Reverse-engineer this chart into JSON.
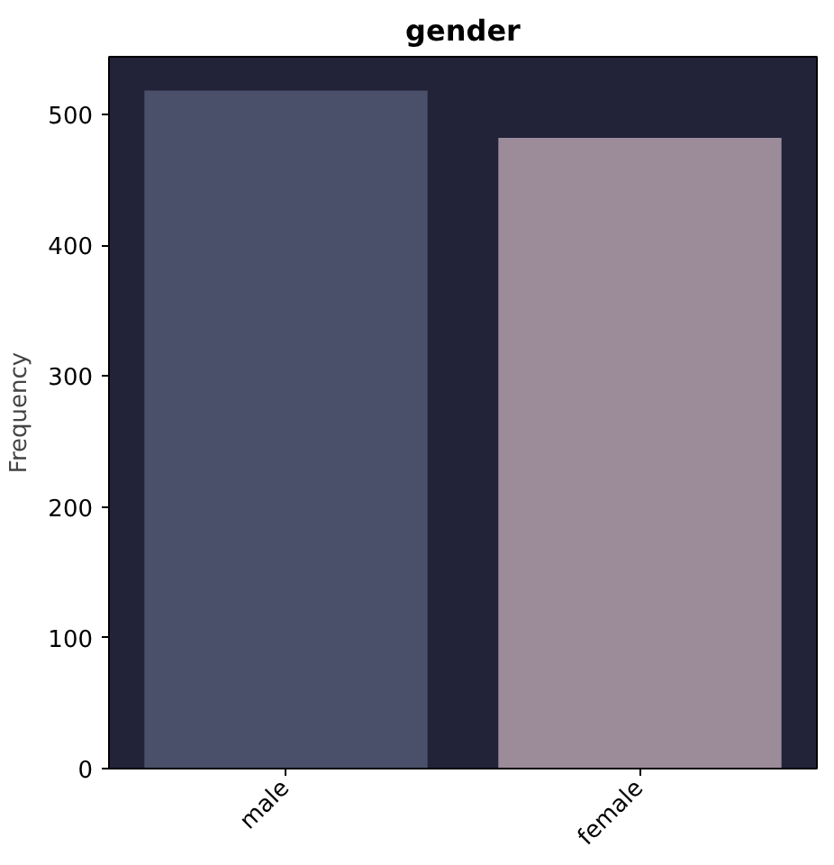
{
  "chart_data": {
    "type": "bar",
    "title": "gender",
    "ylabel": "Frequency",
    "categories": [
      "male",
      "female"
    ],
    "values": [
      518,
      482
    ],
    "colors": [
      "#4a4f6a",
      "#9c8c99"
    ],
    "ylim": [
      0,
      543.9
    ],
    "yticks": [
      0,
      100,
      200,
      300,
      400,
      500
    ],
    "grid": false
  }
}
